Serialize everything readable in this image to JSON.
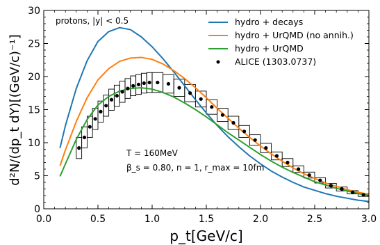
{
  "chart_data": {
    "type": "line",
    "xlabel": "p_t[GeV/c]",
    "ylabel": "d²N/(dp_t dY)[(GeV/c)⁻¹]",
    "xlim": [
      0.0,
      3.0
    ],
    "ylim": [
      0,
      30
    ],
    "xticks": [
      "0.0",
      "0.5",
      "1.0",
      "1.5",
      "2.0",
      "2.5",
      "3.0"
    ],
    "yticks": [
      "0",
      "5",
      "10",
      "15",
      "20",
      "25",
      "30"
    ],
    "grid": false,
    "legend_position": "top-right",
    "annotations": {
      "corner": "protons, |y| < 0.5",
      "temperature": "T = 160MeV",
      "params": "β_s = 0.80, n = 1, r_max = 10fm"
    },
    "series": [
      {
        "name": "hydro + decays",
        "color": "#1f77b4",
        "x": [
          0.15,
          0.2,
          0.3,
          0.4,
          0.5,
          0.6,
          0.7,
          0.8,
          0.9,
          1.0,
          1.1,
          1.2,
          1.3,
          1.4,
          1.5,
          1.6,
          1.7,
          1.8,
          1.9,
          2.0,
          2.1,
          2.2,
          2.3,
          2.4,
          2.5,
          2.6,
          2.7,
          2.8,
          2.9,
          3.0
        ],
        "y": [
          9.2,
          12.6,
          18.2,
          22.4,
          25.3,
          26.8,
          27.4,
          27.1,
          26.0,
          24.5,
          22.7,
          20.7,
          18.6,
          16.5,
          14.5,
          12.6,
          10.9,
          9.4,
          8.0,
          6.8,
          5.7,
          4.8,
          4.0,
          3.3,
          2.8,
          2.3,
          1.9,
          1.6,
          1.3,
          1.1
        ]
      },
      {
        "name": "hydro + UrQMD (no annih.)",
        "color": "#ff7f0e",
        "x": [
          0.15,
          0.2,
          0.3,
          0.4,
          0.5,
          0.6,
          0.7,
          0.8,
          0.9,
          1.0,
          1.1,
          1.2,
          1.3,
          1.4,
          1.5,
          1.6,
          1.7,
          1.8,
          1.9,
          2.0,
          2.1,
          2.2,
          2.3,
          2.4,
          2.5,
          2.6,
          2.7,
          2.8,
          2.9,
          3.0
        ],
        "y": [
          6.5,
          8.9,
          13.2,
          16.8,
          19.5,
          21.2,
          22.3,
          22.8,
          22.9,
          22.6,
          21.9,
          20.9,
          19.7,
          18.3,
          16.8,
          15.2,
          13.7,
          12.2,
          10.8,
          9.5,
          8.3,
          7.2,
          6.2,
          5.3,
          4.6,
          3.9,
          3.4,
          2.9,
          2.5,
          2.2
        ]
      },
      {
        "name": "hydro + UrQMD",
        "color": "#2ca02c",
        "x": [
          0.15,
          0.2,
          0.3,
          0.4,
          0.5,
          0.6,
          0.7,
          0.8,
          0.9,
          1.0,
          1.1,
          1.2,
          1.3,
          1.4,
          1.5,
          1.6,
          1.7,
          1.8,
          1.9,
          2.0,
          2.1,
          2.2,
          2.3,
          2.4,
          2.5,
          2.6,
          2.7,
          2.8,
          2.9,
          3.0
        ],
        "y": [
          4.9,
          6.8,
          10.5,
          13.5,
          15.7,
          17.0,
          17.8,
          18.2,
          18.3,
          18.1,
          17.6,
          16.9,
          16.0,
          15.0,
          13.9,
          12.7,
          11.5,
          10.4,
          9.3,
          8.2,
          7.2,
          6.3,
          5.5,
          4.8,
          4.1,
          3.6,
          3.1,
          2.7,
          2.3,
          2.0
        ]
      }
    ],
    "data_points": {
      "name": "ALICE (1303.0737)",
      "x": [
        0.325,
        0.375,
        0.425,
        0.475,
        0.525,
        0.575,
        0.625,
        0.675,
        0.725,
        0.775,
        0.825,
        0.875,
        0.925,
        0.975,
        1.05,
        1.15,
        1.25,
        1.35,
        1.45,
        1.55,
        1.65,
        1.75,
        1.85,
        1.95,
        2.05,
        2.15,
        2.25,
        2.35,
        2.45,
        2.55,
        2.65,
        2.75,
        2.85,
        2.95
      ],
      "y": [
        9.2,
        10.8,
        12.4,
        13.6,
        14.7,
        15.6,
        16.5,
        17.1,
        17.7,
        18.2,
        18.6,
        18.8,
        19.0,
        19.1,
        19.1,
        18.9,
        18.3,
        17.5,
        16.6,
        15.4,
        14.2,
        13.0,
        11.7,
        10.4,
        9.2,
        8.0,
        7.0,
        6.0,
        5.1,
        4.3,
        3.5,
        3.0,
        2.5,
        2.1
      ],
      "sys_err": [
        1.6,
        1.6,
        1.6,
        1.6,
        1.6,
        1.6,
        1.6,
        1.6,
        1.6,
        1.5,
        1.5,
        1.5,
        1.5,
        1.5,
        1.5,
        1.4,
        1.3,
        1.3,
        1.2,
        1.1,
        1.0,
        1.0,
        0.9,
        0.8,
        0.7,
        0.6,
        0.6,
        0.5,
        0.45,
        0.4,
        0.35,
        0.3,
        0.25,
        0.22
      ],
      "bin_width": [
        0.05,
        0.05,
        0.05,
        0.05,
        0.05,
        0.05,
        0.05,
        0.05,
        0.05,
        0.05,
        0.05,
        0.05,
        0.05,
        0.05,
        0.1,
        0.1,
        0.1,
        0.1,
        0.1,
        0.1,
        0.1,
        0.1,
        0.1,
        0.1,
        0.1,
        0.1,
        0.1,
        0.1,
        0.1,
        0.1,
        0.1,
        0.1,
        0.1,
        0.1
      ]
    }
  }
}
